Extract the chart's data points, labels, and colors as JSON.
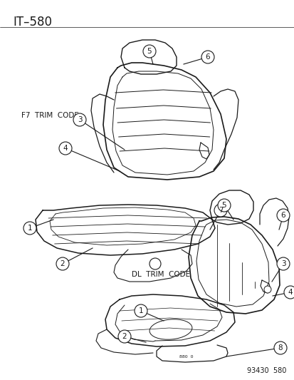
{
  "title": "IT–580",
  "footer": "93430  580",
  "bg": "#ffffff",
  "lc": "#1a1a1a",
  "label_f7": "F7  TRIM  CODE",
  "label_dl": "DL  TRIM  CODE",
  "small_text": "880  0",
  "figsize": [
    4.14,
    5.33
  ],
  "dpi": 100
}
